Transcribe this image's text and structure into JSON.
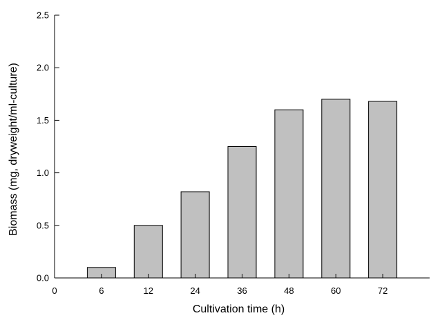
{
  "chart_data": {
    "type": "bar",
    "title": "",
    "xlabel": "Cultivation time (h)",
    "ylabel": "Biomass (mg, dryweight/ml-culture)",
    "x_origin_label": "0",
    "categories": [
      "6",
      "12",
      "24",
      "36",
      "48",
      "60",
      "72"
    ],
    "values": [
      0.1,
      0.5,
      0.82,
      1.25,
      1.6,
      1.7,
      1.68
    ],
    "ylim": [
      0,
      2.5
    ],
    "yticks": [
      "0.0",
      "0.5",
      "1.0",
      "1.5",
      "2.0",
      "2.5"
    ],
    "grid": false,
    "legend": "none",
    "colors": {
      "bar_fill": "#c0c0c0",
      "bar_stroke": "#000000",
      "axis": "#000000"
    }
  }
}
